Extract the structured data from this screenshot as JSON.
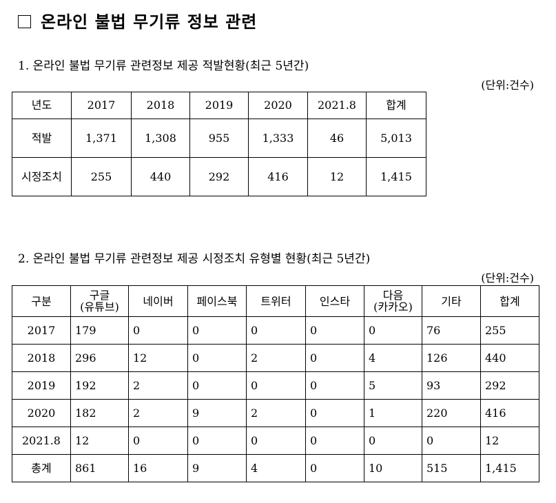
{
  "title": "온라인 불법 무기류 정보 관련",
  "section1": {
    "heading": "1. 온라인 불법 무기류 관련정보 제공 적발현황(최근 5년간)",
    "unit": "(단위:건수)",
    "headers": [
      "년도",
      "2017",
      "2018",
      "2019",
      "2020",
      "2021.8",
      "합계"
    ],
    "rows": [
      [
        "적발",
        "1,371",
        "1,308",
        "955",
        "1,333",
        "46",
        "5,013"
      ],
      [
        "시정조치",
        "255",
        "440",
        "292",
        "416",
        "12",
        "1,415"
      ]
    ]
  },
  "section2": {
    "heading": "2. 온라인 불법 무기류 관련정보 제공 시정조치 유형별 현황(최근 5년간)",
    "unit": "(단위:건수)",
    "headers": [
      {
        "line1": "구분",
        "line2": ""
      },
      {
        "line1": "구글",
        "line2": "(유튜브)"
      },
      {
        "line1": "네이버",
        "line2": ""
      },
      {
        "line1": "페이스북",
        "line2": ""
      },
      {
        "line1": "트위터",
        "line2": ""
      },
      {
        "line1": "인스타",
        "line2": ""
      },
      {
        "line1": "다음",
        "line2": "(카카오)"
      },
      {
        "line1": "기타",
        "line2": ""
      },
      {
        "line1": "합계",
        "line2": ""
      }
    ],
    "rows": [
      [
        "2017",
        "179",
        "0",
        "0",
        "0",
        "0",
        "0",
        "76",
        "255"
      ],
      [
        "2018",
        "296",
        "12",
        "0",
        "2",
        "0",
        "4",
        "126",
        "440"
      ],
      [
        "2019",
        "192",
        "2",
        "0",
        "0",
        "0",
        "5",
        "93",
        "292"
      ],
      [
        "2020",
        "182",
        "2",
        "9",
        "2",
        "0",
        "1",
        "220",
        "416"
      ],
      [
        "2021.8",
        "12",
        "0",
        "0",
        "0",
        "0",
        "0",
        "0",
        "12"
      ],
      [
        "총계",
        "861",
        "16",
        "9",
        "4",
        "0",
        "10",
        "515",
        "1,415"
      ]
    ]
  }
}
